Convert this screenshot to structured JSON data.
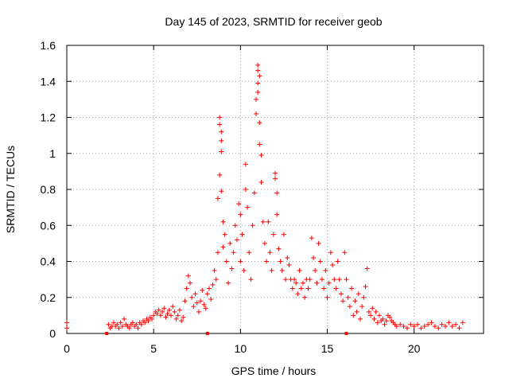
{
  "chart_data": {
    "type": "scatter",
    "title": "Day 145 of 2023, SRMTID for receiver geob",
    "xlabel": "GPS time / hours",
    "ylabel": "SRMTID / TECUs",
    "xlim": [
      0,
      24
    ],
    "ylim": [
      0,
      1.6
    ],
    "x_ticks": [
      0,
      5,
      10,
      15,
      20
    ],
    "x_tick_labels": [
      "0",
      "5",
      "10",
      "15",
      "20"
    ],
    "y_ticks": [
      0,
      0.2,
      0.4,
      0.6,
      0.8,
      1.0,
      1.2,
      1.4,
      1.6
    ],
    "y_tick_labels": [
      "0",
      "0.2",
      "0.4",
      "0.6",
      "0.8",
      "1",
      "1.2",
      "1.4",
      "1.6"
    ],
    "grid": true,
    "marker": "+",
    "series": [
      {
        "name": "SRMTID",
        "color": "#ff0000",
        "points": [
          [
            0.0,
            0.06
          ],
          [
            0.0,
            0.03
          ],
          [
            2.4,
            0.05
          ],
          [
            2.5,
            0.03
          ],
          [
            2.6,
            0.04
          ],
          [
            2.7,
            0.06
          ],
          [
            2.8,
            0.04
          ],
          [
            2.9,
            0.05
          ],
          [
            3.0,
            0.03
          ],
          [
            3.1,
            0.06
          ],
          [
            3.2,
            0.04
          ],
          [
            3.3,
            0.08
          ],
          [
            3.4,
            0.05
          ],
          [
            3.5,
            0.04
          ],
          [
            3.6,
            0.03
          ],
          [
            3.7,
            0.05
          ],
          [
            3.8,
            0.06
          ],
          [
            3.9,
            0.04
          ],
          [
            4.0,
            0.05
          ],
          [
            4.1,
            0.03
          ],
          [
            4.2,
            0.06
          ],
          [
            4.3,
            0.05
          ],
          [
            4.4,
            0.07
          ],
          [
            4.5,
            0.06
          ],
          [
            4.6,
            0.08
          ],
          [
            4.7,
            0.07
          ],
          [
            4.8,
            0.09
          ],
          [
            4.9,
            0.08
          ],
          [
            5.0,
            0.1
          ],
          [
            5.1,
            0.12
          ],
          [
            5.2,
            0.11
          ],
          [
            5.3,
            0.13
          ],
          [
            5.4,
            0.1
          ],
          [
            5.5,
            0.12
          ],
          [
            5.6,
            0.14
          ],
          [
            5.7,
            0.09
          ],
          [
            5.8,
            0.11
          ],
          [
            5.9,
            0.13
          ],
          [
            6.0,
            0.1
          ],
          [
            6.1,
            0.15
          ],
          [
            6.2,
            0.12
          ],
          [
            6.3,
            0.08
          ],
          [
            6.4,
            0.1
          ],
          [
            6.5,
            0.13
          ],
          [
            6.6,
            0.07
          ],
          [
            6.7,
            0.09
          ],
          [
            6.8,
            0.18
          ],
          [
            6.9,
            0.25
          ],
          [
            7.0,
            0.32
          ],
          [
            7.1,
            0.28
          ],
          [
            7.2,
            0.2
          ],
          [
            7.3,
            0.15
          ],
          [
            7.4,
            0.22
          ],
          [
            7.5,
            0.17
          ],
          [
            7.6,
            0.12
          ],
          [
            7.7,
            0.18
          ],
          [
            7.8,
            0.24
          ],
          [
            7.9,
            0.16
          ],
          [
            8.0,
            0.14
          ],
          [
            8.1,
            0.22
          ],
          [
            8.2,
            0.25
          ],
          [
            8.3,
            0.19
          ],
          [
            8.4,
            0.27
          ],
          [
            8.5,
            0.35
          ],
          [
            8.6,
            0.3
          ],
          [
            8.7,
            0.45
          ],
          [
            8.7,
            0.75
          ],
          [
            8.8,
            0.88
          ],
          [
            8.8,
            1.2
          ],
          [
            8.8,
            1.16
          ],
          [
            8.9,
            1.12
          ],
          [
            8.9,
            1.07
          ],
          [
            8.9,
            1.01
          ],
          [
            8.9,
            0.79
          ],
          [
            9.0,
            0.62
          ],
          [
            9.0,
            0.48
          ],
          [
            9.1,
            0.55
          ],
          [
            9.2,
            0.4
          ],
          [
            9.3,
            0.28
          ],
          [
            9.4,
            0.5
          ],
          [
            9.5,
            0.36
          ],
          [
            9.6,
            0.45
          ],
          [
            9.7,
            0.6
          ],
          [
            9.8,
            0.52
          ],
          [
            9.9,
            0.72
          ],
          [
            10.0,
            0.66
          ],
          [
            10.0,
            0.4
          ],
          [
            10.1,
            0.55
          ],
          [
            10.2,
            0.35
          ],
          [
            10.3,
            0.94
          ],
          [
            10.3,
            0.8
          ],
          [
            10.4,
            0.7
          ],
          [
            10.5,
            0.45
          ],
          [
            10.6,
            0.3
          ],
          [
            10.7,
            0.6
          ],
          [
            10.8,
            0.78
          ],
          [
            10.9,
            1.3
          ],
          [
            10.9,
            1.22
          ],
          [
            11.0,
            1.49
          ],
          [
            11.0,
            1.46
          ],
          [
            11.0,
            1.39
          ],
          [
            11.0,
            1.34
          ],
          [
            11.1,
            1.43
          ],
          [
            11.1,
            1.17
          ],
          [
            11.1,
            1.05
          ],
          [
            11.2,
            0.99
          ],
          [
            11.2,
            0.84
          ],
          [
            11.3,
            0.62
          ],
          [
            11.4,
            0.5
          ],
          [
            11.5,
            0.4
          ],
          [
            11.6,
            0.62
          ],
          [
            11.7,
            0.45
          ],
          [
            11.8,
            0.35
          ],
          [
            11.9,
            0.55
          ],
          [
            12.0,
            0.89
          ],
          [
            12.0,
            0.86
          ],
          [
            12.1,
            0.78
          ],
          [
            12.1,
            0.66
          ],
          [
            12.2,
            0.47
          ],
          [
            12.3,
            0.4
          ],
          [
            12.4,
            0.35
          ],
          [
            12.5,
            0.55
          ],
          [
            12.6,
            0.3
          ],
          [
            12.7,
            0.42
          ],
          [
            12.8,
            0.38
          ],
          [
            12.9,
            0.3
          ],
          [
            13.0,
            0.25
          ],
          [
            13.1,
            0.3
          ],
          [
            13.2,
            0.28
          ],
          [
            13.3,
            0.22
          ],
          [
            13.4,
            0.35
          ],
          [
            13.5,
            0.25
          ],
          [
            13.6,
            0.28
          ],
          [
            13.7,
            0.2
          ],
          [
            13.8,
            0.3
          ],
          [
            13.9,
            0.25
          ],
          [
            14.0,
            0.3
          ],
          [
            14.1,
            0.53
          ],
          [
            14.2,
            0.42
          ],
          [
            14.3,
            0.35
          ],
          [
            14.4,
            0.28
          ],
          [
            14.5,
            0.5
          ],
          [
            14.6,
            0.4
          ],
          [
            14.7,
            0.3
          ],
          [
            14.8,
            0.25
          ],
          [
            14.9,
            0.35
          ],
          [
            15.0,
            0.2
          ],
          [
            15.1,
            0.28
          ],
          [
            15.2,
            0.45
          ],
          [
            15.3,
            0.38
          ],
          [
            15.4,
            0.3
          ],
          [
            15.5,
            0.25
          ],
          [
            15.6,
            0.4
          ],
          [
            15.7,
            0.3
          ],
          [
            15.8,
            0.22
          ],
          [
            15.9,
            0.18
          ],
          [
            16.0,
            0.45
          ],
          [
            16.1,
            0.3
          ],
          [
            16.2,
            0.2
          ],
          [
            16.3,
            0.15
          ],
          [
            16.4,
            0.25
          ],
          [
            16.5,
            0.1
          ],
          [
            16.6,
            0.18
          ],
          [
            16.7,
            0.12
          ],
          [
            16.8,
            0.22
          ],
          [
            16.9,
            0.08
          ],
          [
            17.0,
            0.15
          ],
          [
            17.1,
            0.2
          ],
          [
            17.2,
            0.26
          ],
          [
            17.3,
            0.36
          ],
          [
            17.4,
            0.12
          ],
          [
            17.5,
            0.1
          ],
          [
            17.6,
            0.14
          ],
          [
            17.7,
            0.08
          ],
          [
            17.8,
            0.12
          ],
          [
            17.9,
            0.06
          ],
          [
            18.0,
            0.1
          ],
          [
            18.1,
            0.07
          ],
          [
            18.2,
            0.08
          ],
          [
            18.3,
            0.05
          ],
          [
            18.4,
            0.07
          ],
          [
            18.5,
            0.1
          ],
          [
            18.6,
            0.09
          ],
          [
            18.7,
            0.07
          ],
          [
            18.8,
            0.06
          ],
          [
            18.9,
            0.05
          ],
          [
            19.0,
            0.04
          ],
          [
            19.2,
            0.05
          ],
          [
            19.4,
            0.04
          ],
          [
            19.6,
            0.03
          ],
          [
            19.8,
            0.05
          ],
          [
            20.0,
            0.04
          ],
          [
            20.2,
            0.05
          ],
          [
            20.4,
            0.03
          ],
          [
            20.6,
            0.04
          ],
          [
            20.8,
            0.05
          ],
          [
            21.0,
            0.06
          ],
          [
            21.2,
            0.04
          ],
          [
            21.4,
            0.03
          ],
          [
            21.6,
            0.05
          ],
          [
            21.8,
            0.04
          ],
          [
            22.0,
            0.06
          ],
          [
            22.2,
            0.04
          ],
          [
            22.4,
            0.05
          ],
          [
            22.6,
            0.03
          ],
          [
            22.8,
            0.06
          ]
        ]
      }
    ],
    "square_markers": [
      [
        2.3,
        0.0
      ],
      [
        8.1,
        0.0
      ],
      [
        16.1,
        0.0
      ]
    ]
  }
}
